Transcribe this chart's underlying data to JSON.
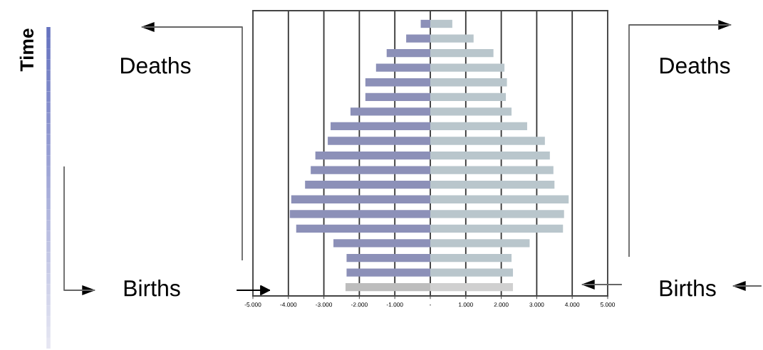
{
  "chart_data": {
    "type": "bar",
    "orientation": "horizontal",
    "stacked": true,
    "categories": [
      null,
      null,
      null,
      null,
      null,
      null,
      null,
      null,
      null,
      null,
      null,
      null,
      null,
      null,
      null,
      null,
      null,
      null,
      null
    ],
    "series": [
      {
        "colors": [
          "#8c90b8",
          "#8c90b8",
          "#8c90b8",
          "#8c90b8",
          "#8c90b8",
          "#8c90b8",
          "#8c90b8",
          "#8c90b8",
          "#8c90b8",
          "#8c90b8",
          "#8c90b8",
          "#8c90b8",
          "#8c90b8",
          "#8c90b8",
          "#8c90b8",
          "#8c90b8",
          "#8c90b8",
          "#8c90b8",
          "#bdbdbd"
        ],
        "values": [
          -270,
          -680,
          -1230,
          -1530,
          -1830,
          -1830,
          -2250,
          -2810,
          -2890,
          -3240,
          -3370,
          -3530,
          -3920,
          -3960,
          -3780,
          -2730,
          -2360,
          -2360,
          -2390
        ]
      },
      {
        "colors": [
          "#b9c6cc",
          "#b9c6cc",
          "#b9c6cc",
          "#b9c6cc",
          "#b9c6cc",
          "#b9c6cc",
          "#b9c6cc",
          "#b9c6cc",
          "#b9c6cc",
          "#b9c6cc",
          "#b9c6cc",
          "#b9c6cc",
          "#b9c6cc",
          "#b9c6cc",
          "#b9c6cc",
          "#b9c6cc",
          "#b9c6cc",
          "#b9c6cc",
          "#d0d0d0"
        ],
        "values": [
          620,
          1220,
          1780,
          2090,
          2160,
          2130,
          2290,
          2730,
          3230,
          3370,
          3470,
          3500,
          3900,
          3770,
          3740,
          2800,
          2290,
          2330,
          2330
        ]
      }
    ],
    "xlim": [
      -5000,
      5000
    ],
    "xticks": [
      {
        "value": -5000,
        "label": "-5.000"
      },
      {
        "value": -4000,
        "label": "-4.000"
      },
      {
        "value": -3000,
        "label": "-3.000"
      },
      {
        "value": -2000,
        "label": "-2.000"
      },
      {
        "value": -1000,
        "label": "-1.000"
      },
      {
        "value": 0,
        "label": "-"
      },
      {
        "value": 1000,
        "label": "1.000"
      },
      {
        "value": 2000,
        "label": "2.000"
      },
      {
        "value": 3000,
        "label": "3.000"
      },
      {
        "value": 4000,
        "label": "4.000"
      },
      {
        "value": 5000,
        "label": "5.000"
      }
    ],
    "tick_labels": "x",
    "grid": "x",
    "annotations": [
      "Time",
      "Deaths",
      "Deaths",
      "Births",
      "Births"
    ]
  }
}
